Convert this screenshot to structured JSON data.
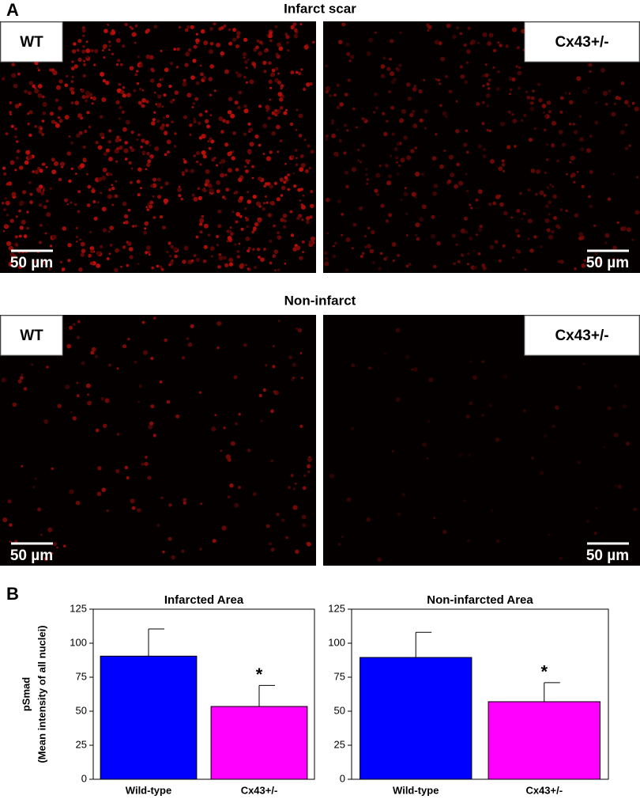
{
  "figure": {
    "panel_labels": [
      "A",
      "B"
    ],
    "image_rows": [
      {
        "title": "Infarct scar",
        "panels": [
          {
            "label": "WT",
            "scale": "50 µm"
          },
          {
            "label": "Cx43+/-",
            "scale": "50 µm"
          }
        ]
      },
      {
        "title": "Non-infarct",
        "panels": [
          {
            "label": "WT",
            "scale": "50 µm"
          },
          {
            "label": "Cx43+/-",
            "scale": "50 µm"
          }
        ]
      }
    ]
  },
  "chart_data": [
    {
      "type": "bar",
      "title": "Infarcted Area",
      "ylabel": [
        "pSmad",
        "(Mean intensity of all nuclei)"
      ],
      "categories": [
        "Wild-type",
        "Cx43+/-"
      ],
      "values": [
        90.5,
        53.5
      ],
      "errors": [
        20,
        15.5
      ],
      "colors": [
        "#0000ff",
        "#ff00ff"
      ],
      "annotation": "*",
      "ylim": [
        0,
        125
      ],
      "yticks": [
        0,
        25,
        50,
        75,
        100,
        125
      ]
    },
    {
      "type": "bar",
      "title": "Non-infarcted Area",
      "categories": [
        "Wild-type",
        "Cx43+/-"
      ],
      "values": [
        89.5,
        57
      ],
      "errors": [
        18.5,
        14
      ],
      "colors": [
        "#0000ff",
        "#ff00ff"
      ],
      "annotation": "*",
      "ylim": [
        0,
        125
      ],
      "yticks": [
        0,
        25,
        50,
        75,
        100,
        125
      ]
    }
  ]
}
